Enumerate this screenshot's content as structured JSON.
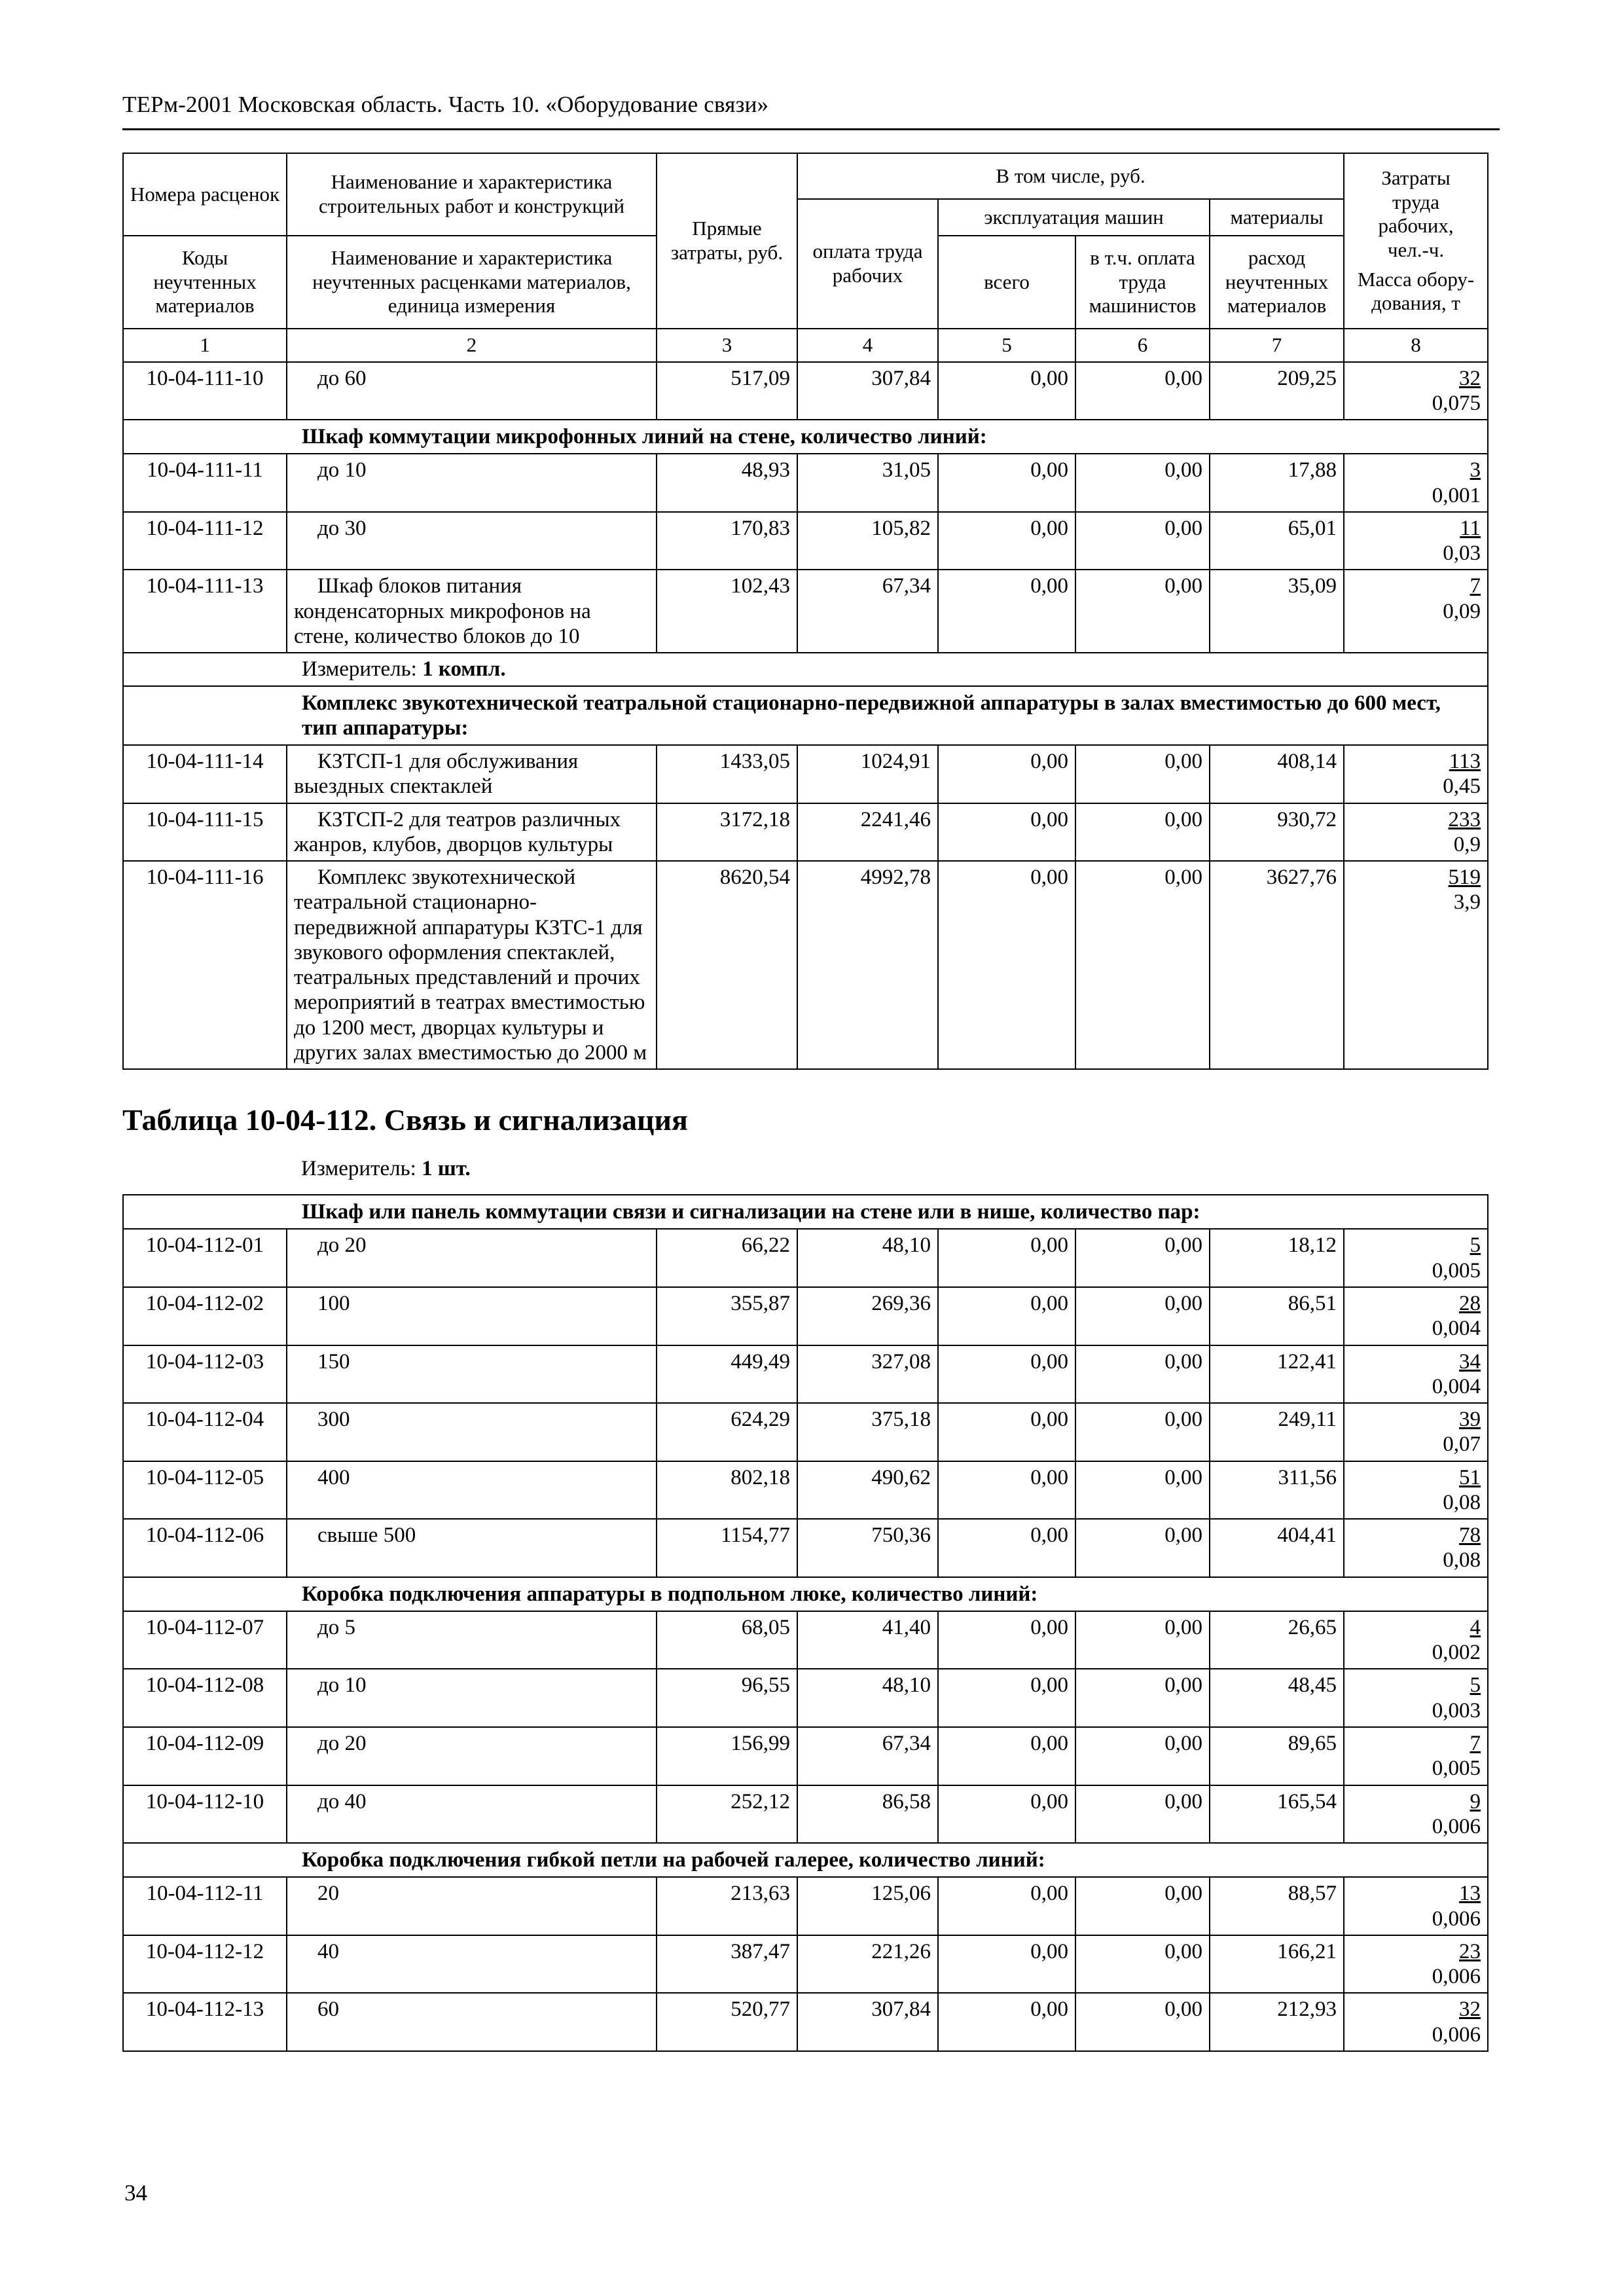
{
  "page": {
    "header_title": "ТЕРм-2001 Московская область. Часть 10. «Оборудование связи»",
    "page_number": "34"
  },
  "columns": {
    "rate_numbers": "Номера расценок",
    "uncounted_codes": "Коды неучтенных материалов",
    "works_name": "Наименование и характеристика строительных работ и конструкций",
    "uncounted_materials_name": "Наименование и характеристика неучтенных расценками материалов, единица измерения",
    "direct_costs": "Прямые затраты, руб.",
    "including": "В том числе, руб.",
    "workers_pay": "оплата труда рабочих",
    "machines_operation": "эксплуатация машин",
    "total": "всего",
    "machinists_pay": "в т.ч. оплата труда машинистов",
    "materials": "материалы",
    "uncounted_materials_consumption": "расход неучтенных материалов",
    "labor_costs": "Затраты труда рабочих, чел.-ч.",
    "equipment_mass": "Масса обору-дования, т",
    "numbers": [
      "1",
      "2",
      "3",
      "4",
      "5",
      "6",
      "7",
      "8"
    ]
  },
  "table1": {
    "rows": [
      {
        "type": "data",
        "code": "10-04-111-10",
        "name": "до 60",
        "direct": "517,09",
        "wages": "307,84",
        "machines_total": "0,00",
        "machinists": "0,00",
        "materials": "209,25",
        "labor": "32",
        "mass": "0,075"
      },
      {
        "type": "section",
        "text": "Шкаф коммутации микрофонных линий на стене, количество линий:"
      },
      {
        "type": "data",
        "code": "10-04-111-11",
        "name": "до 10",
        "direct": "48,93",
        "wages": "31,05",
        "machines_total": "0,00",
        "machinists": "0,00",
        "materials": "17,88",
        "labor": "3",
        "mass": "0,001"
      },
      {
        "type": "data",
        "code": "10-04-111-12",
        "name": "до 30",
        "direct": "170,83",
        "wages": "105,82",
        "machines_total": "0,00",
        "machinists": "0,00",
        "materials": "65,01",
        "labor": "11",
        "mass": "0,03"
      },
      {
        "type": "data",
        "code": "10-04-111-13",
        "name": "Шкаф блоков питания конденсаторных микрофонов на стене, количество блоков до 10",
        "direct": "102,43",
        "wages": "67,34",
        "machines_total": "0,00",
        "machinists": "0,00",
        "materials": "35,09",
        "labor": "7",
        "mass": "0,09"
      },
      {
        "type": "measure",
        "label": "Измеритель:",
        "value": "1 компл."
      },
      {
        "type": "section",
        "text": "Комплекс звукотехнической театральной стационарно-передвижной аппаратуры в залах вместимостью до 600 мест, тип аппаратуры:"
      },
      {
        "type": "data",
        "code": "10-04-111-14",
        "name": "КЗТСП-1 для обслуживания выездных спектаклей",
        "direct": "1433,05",
        "wages": "1024,91",
        "machines_total": "0,00",
        "machinists": "0,00",
        "materials": "408,14",
        "labor": "113",
        "mass": "0,45"
      },
      {
        "type": "data",
        "code": "10-04-111-15",
        "name": "КЗТСП-2 для театров различных жанров, клубов, дворцов культуры",
        "direct": "3172,18",
        "wages": "2241,46",
        "machines_total": "0,00",
        "machinists": "0,00",
        "materials": "930,72",
        "labor": "233",
        "mass": "0,9"
      },
      {
        "type": "data",
        "code": "10-04-111-16",
        "name": "Комплекс звукотехнической театральной стационарно-передвижной аппаратуры КЗТС-1 для звукового оформления спектаклей, театральных представлений и прочих мероприятий в театрах вместимостью до 1200 мест, дворцах культуры и других залах вместимостью до 2000 м",
        "direct": "8620,54",
        "wages": "4992,78",
        "machines_total": "0,00",
        "machinists": "0,00",
        "materials": "3627,76",
        "labor": "519",
        "mass": "3,9"
      }
    ]
  },
  "section2": {
    "title": "Таблица 10-04-112. Связь и сигнализация",
    "measure_label": "Измеритель:",
    "measure_value": "1 шт."
  },
  "table2": {
    "rows": [
      {
        "type": "section",
        "text": "Шкаф или панель коммутации связи и сигнализации на стене или в нише, количество пар:"
      },
      {
        "type": "data",
        "code": "10-04-112-01",
        "name": "до 20",
        "direct": "66,22",
        "wages": "48,10",
        "machines_total": "0,00",
        "machinists": "0,00",
        "materials": "18,12",
        "labor": "5",
        "mass": "0,005"
      },
      {
        "type": "data",
        "code": "10-04-112-02",
        "name": "100",
        "direct": "355,87",
        "wages": "269,36",
        "machines_total": "0,00",
        "machinists": "0,00",
        "materials": "86,51",
        "labor": "28",
        "mass": "0,004"
      },
      {
        "type": "data",
        "code": "10-04-112-03",
        "name": "150",
        "direct": "449,49",
        "wages": "327,08",
        "machines_total": "0,00",
        "machinists": "0,00",
        "materials": "122,41",
        "labor": "34",
        "mass": "0,004"
      },
      {
        "type": "data",
        "code": "10-04-112-04",
        "name": "300",
        "direct": "624,29",
        "wages": "375,18",
        "machines_total": "0,00",
        "machinists": "0,00",
        "materials": "249,11",
        "labor": "39",
        "mass": "0,07"
      },
      {
        "type": "data",
        "code": "10-04-112-05",
        "name": "400",
        "direct": "802,18",
        "wages": "490,62",
        "machines_total": "0,00",
        "machinists": "0,00",
        "materials": "311,56",
        "labor": "51",
        "mass": "0,08"
      },
      {
        "type": "data",
        "code": "10-04-112-06",
        "name": "свыше 500",
        "direct": "1154,77",
        "wages": "750,36",
        "machines_total": "0,00",
        "machinists": "0,00",
        "materials": "404,41",
        "labor": "78",
        "mass": "0,08"
      },
      {
        "type": "section",
        "text": "Коробка подключения аппаратуры в подпольном люке, количество линий:"
      },
      {
        "type": "data",
        "code": "10-04-112-07",
        "name": "до 5",
        "direct": "68,05",
        "wages": "41,40",
        "machines_total": "0,00",
        "machinists": "0,00",
        "materials": "26,65",
        "labor": "4",
        "mass": "0,002"
      },
      {
        "type": "data",
        "code": "10-04-112-08",
        "name": "до 10",
        "direct": "96,55",
        "wages": "48,10",
        "machines_total": "0,00",
        "machinists": "0,00",
        "materials": "48,45",
        "labor": "5",
        "mass": "0,003"
      },
      {
        "type": "data",
        "code": "10-04-112-09",
        "name": "до 20",
        "direct": "156,99",
        "wages": "67,34",
        "machines_total": "0,00",
        "machinists": "0,00",
        "materials": "89,65",
        "labor": "7",
        "mass": "0,005"
      },
      {
        "type": "data",
        "code": "10-04-112-10",
        "name": "до 40",
        "direct": "252,12",
        "wages": "86,58",
        "machines_total": "0,00",
        "machinists": "0,00",
        "materials": "165,54",
        "labor": "9",
        "mass": "0,006"
      },
      {
        "type": "section",
        "text": "Коробка подключения гибкой петли на рабочей галерее, количество линий:"
      },
      {
        "type": "data",
        "code": "10-04-112-11",
        "name": "20",
        "direct": "213,63",
        "wages": "125,06",
        "machines_total": "0,00",
        "machinists": "0,00",
        "materials": "88,57",
        "labor": "13",
        "mass": "0,006"
      },
      {
        "type": "data",
        "code": "10-04-112-12",
        "name": "40",
        "direct": "387,47",
        "wages": "221,26",
        "machines_total": "0,00",
        "machinists": "0,00",
        "materials": "166,21",
        "labor": "23",
        "mass": "0,006"
      },
      {
        "type": "data",
        "code": "10-04-112-13",
        "name": "60",
        "direct": "520,77",
        "wages": "307,84",
        "machines_total": "0,00",
        "machinists": "0,00",
        "materials": "212,93",
        "labor": "32",
        "mass": "0,006"
      }
    ]
  }
}
